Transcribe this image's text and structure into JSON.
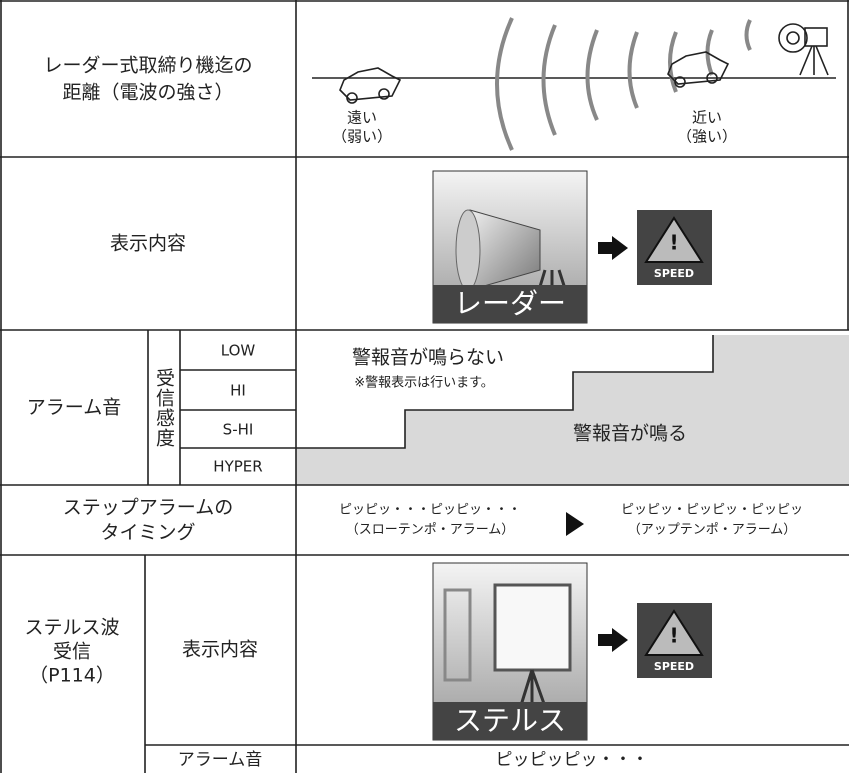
{
  "distance": {
    "label_lines": [
      "レーダー式取締り機迄の",
      "距離（電波の強さ）"
    ],
    "far": [
      "遠い",
      "（弱い）"
    ],
    "near": [
      "近い",
      "（強い）"
    ]
  },
  "display": {
    "label": "表示内容",
    "icon_label": "レーダー",
    "badge": "SPEED"
  },
  "alarm": {
    "label": "アラーム音",
    "sensitivity": "受信感度",
    "levels": [
      "LOW",
      "HI",
      "S-HI",
      "HYPER"
    ],
    "silent": "警報音が鳴らない",
    "note": "※警報表示は行います。",
    "sound": "警報音が鳴る"
  },
  "step": {
    "label_lines": [
      "ステップアラームの",
      "タイミング"
    ],
    "slow": [
      "ピッピッ・・・ピッピッ・・・",
      "（スローテンポ・アラーム）"
    ],
    "fast": [
      "ピッピッ・ピッピッ・ピッピッ",
      "（アップテンポ・アラーム）"
    ]
  },
  "stealth": {
    "label_lines": [
      "ステルス波",
      "受信",
      "（P114）"
    ],
    "display_label": "表示内容",
    "icon_label": "ステルス",
    "badge": "SPEED",
    "alarm_label": "アラーム音",
    "alarm_sound": "ピッピッピッ・・・"
  }
}
